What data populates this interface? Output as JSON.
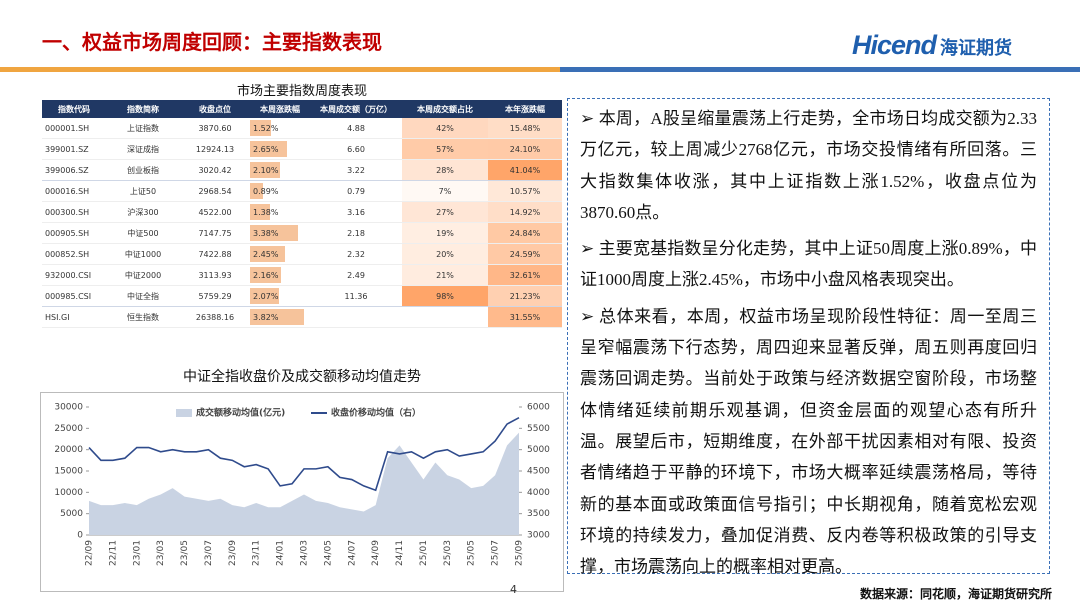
{
  "header": {
    "title": "一、权益市场周度回顾：主要指数表现",
    "logo_en": "Hicend",
    "logo_cn": "海证期货"
  },
  "table": {
    "title": "市场主要指数周度表现",
    "columns": [
      "指数代码",
      "指数简称",
      "收盘点位",
      "本周涨跌幅",
      "本周成交额（万亿）",
      "本周成交额占比",
      "本年涨跌幅"
    ],
    "rows": [
      [
        "000001.SH",
        "上证指数",
        "3870.60",
        "1.52%",
        "4.88",
        "42%",
        "15.48%"
      ],
      [
        "399001.SZ",
        "深证成指",
        "12924.13",
        "2.65%",
        "6.60",
        "57%",
        "24.10%"
      ],
      [
        "399006.SZ",
        "创业板指",
        "3020.42",
        "2.10%",
        "3.22",
        "28%",
        "41.04%"
      ],
      [
        "000016.SH",
        "上证50",
        "2968.54",
        "0.89%",
        "0.79",
        "7%",
        "10.57%"
      ],
      [
        "000300.SH",
        "沪深300",
        "4522.00",
        "1.38%",
        "3.16",
        "27%",
        "14.92%"
      ],
      [
        "000905.SH",
        "中证500",
        "7147.75",
        "3.38%",
        "2.18",
        "19%",
        "24.84%"
      ],
      [
        "000852.SH",
        "中证1000",
        "7422.88",
        "2.45%",
        "2.32",
        "20%",
        "24.59%"
      ],
      [
        "932000.CSI",
        "中证2000",
        "3113.93",
        "2.16%",
        "2.49",
        "21%",
        "32.61%"
      ],
      [
        "000985.CSI",
        "中证全指",
        "5759.29",
        "2.07%",
        "11.36",
        "98%",
        "21.23%"
      ],
      [
        "HSI.GI",
        "恒生指数",
        "26388.16",
        "3.82%",
        null,
        null,
        "31.55%"
      ]
    ]
  },
  "chart_data": {
    "type": "area",
    "title": "中证全指收盘价及成交额移动均值走势",
    "categories": [
      "22/09",
      null,
      "22/11",
      null,
      "23/01",
      null,
      "23/03",
      null,
      "23/05",
      null,
      "23/07",
      null,
      "23/09",
      null,
      "23/11",
      null,
      "24/01",
      null,
      "24/03",
      null,
      "24/05",
      null,
      "24/07",
      null,
      "24/09",
      null,
      "24/11",
      null,
      "25/01",
      null,
      "25/03",
      null,
      "25/05",
      null,
      "25/07",
      null,
      "25/09"
    ],
    "series": [
      {
        "name": "成交额移动均值(亿元)",
        "color": "#c9d3e3",
        "type": "area",
        "values": [
          8000,
          7000,
          7000,
          7500,
          7000,
          8500,
          9500,
          11000,
          9000,
          8500,
          8000,
          8500,
          7000,
          6500,
          7500,
          6500,
          6500,
          8000,
          9500,
          8000,
          7500,
          6500,
          6000,
          5500,
          7000,
          18000,
          21000,
          17000,
          13000,
          17000,
          14000,
          13000,
          11000,
          11500,
          14000,
          21000,
          24000
        ]
      },
      {
        "name": "收盘价移动均值（右）",
        "color": "#2f4b8c",
        "type": "line",
        "axis": "y2",
        "values": [
          5050,
          4750,
          4750,
          4800,
          5050,
          5050,
          4950,
          5000,
          4950,
          4950,
          5000,
          4800,
          4750,
          4600,
          4650,
          4550,
          4150,
          4200,
          4550,
          4550,
          4600,
          4350,
          4300,
          4150,
          4050,
          4950,
          4900,
          4950,
          4800,
          4950,
          5000,
          4850,
          4900,
          4950,
          5200,
          5600,
          5750
        ]
      }
    ],
    "ylim": [
      0,
      30000
    ],
    "yticks": [
      0,
      5000,
      10000,
      15000,
      20000,
      25000,
      30000
    ],
    "y2lim": [
      3000,
      6000
    ],
    "y2ticks": [
      3000,
      3500,
      4000,
      4500,
      5000,
      5500,
      6000
    ]
  },
  "text": {
    "paragraphs": [
      "本周，A股呈缩量震荡上行走势，全市场日均成交额为2.33万亿元，较上周减少2768亿元，市场交投情绪有所回落。三大指数集体收涨，其中上证指数上涨1.52%，收盘点位为3870.60点。",
      "主要宽基指数呈分化走势，其中上证50周度上涨0.89%，中证1000周度上涨2.45%，市场中小盘风格表现突出。",
      "总体来看，本周，权益市场呈现阶段性特征：周一至周三呈窄幅震荡下行态势，周四迎来显著反弹，周五则再度回归震荡回调走势。当前处于政策与经济数据空窗阶段，市场整体情绪延续前期乐观基调，但资金层面的观望心态有所升温。展望后市，短期维度，在外部干扰因素相对有限、投资者情绪趋于平静的环境下，市场大概率延续震荡格局，等待新的基本面或政策面信号指引；中长期视角，随着宽松宏观环境的持续发力，叠加促消费、反内卷等积极政策的引导支撑，市场震荡向上的概率相对更高。"
    ]
  },
  "footer": {
    "page": "4",
    "source": "数据来源：同花顺，海证期货研究所"
  }
}
